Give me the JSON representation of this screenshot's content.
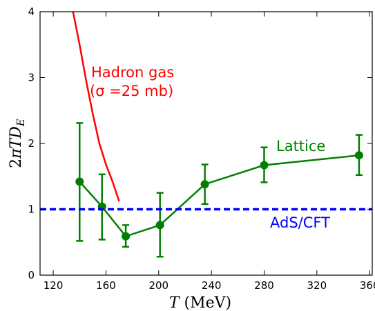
{
  "chart_data": {
    "type": "line",
    "xlabel": "T (MeV)",
    "ylabel": "2πTD_E",
    "xlim": [
      110,
      362
    ],
    "ylim": [
      0,
      4
    ],
    "xticks": [
      120,
      160,
      200,
      240,
      280,
      320,
      360
    ],
    "yticks": [
      0,
      1,
      2,
      3,
      4
    ],
    "xtick_labels": [
      "120",
      "160",
      "200",
      "240",
      "280",
      "320",
      "360"
    ],
    "ytick_labels": [
      "0",
      "1",
      "2",
      "3",
      "4"
    ],
    "grid": false,
    "series": [
      {
        "name": "Lattice",
        "color": "#007f00",
        "marker": "circle",
        "x": [
          140,
          157,
          175,
          201,
          235,
          280,
          352
        ],
        "y": [
          1.42,
          1.04,
          0.59,
          0.76,
          1.38,
          1.67,
          1.82
        ],
        "y_err_low": [
          0.52,
          0.54,
          0.43,
          0.28,
          1.08,
          1.41,
          1.52
        ],
        "y_err_high": [
          2.31,
          1.53,
          0.76,
          1.25,
          1.68,
          1.94,
          2.13
        ]
      },
      {
        "name": "Hadron gas",
        "color": "#ff0000",
        "x": [
          135,
          140,
          145,
          150,
          155,
          160,
          165,
          170
        ],
        "y": [
          4.0,
          3.5,
          2.95,
          2.45,
          2.0,
          1.68,
          1.42,
          1.12
        ]
      },
      {
        "name": "AdS/CFT",
        "color": "#0000ff",
        "style": "dashed",
        "x": [
          110,
          362
        ],
        "y": [
          1.0,
          1.0
        ]
      }
    ],
    "annotations": {
      "hadron_line1": "Hadron gas",
      "hadron_line2": "(σ =25 mb)",
      "lattice": "Lattice",
      "adscft": "AdS/CFT"
    }
  }
}
